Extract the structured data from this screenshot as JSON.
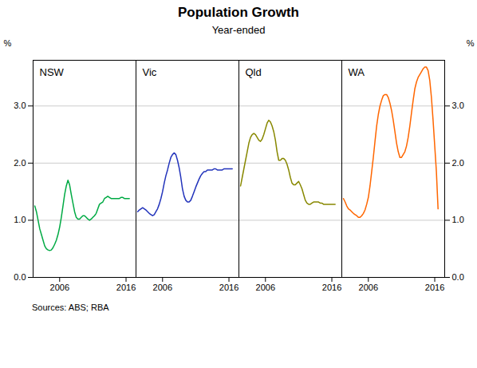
{
  "chart_data": {
    "type": "line",
    "title": "Population Growth",
    "subtitle": "Year-ended",
    "source": "Sources:   ABS; RBA",
    "ylabel": "%",
    "y2label": "%",
    "xlim": [
      2002.0,
      2017.5
    ],
    "xticks": [
      2006,
      2016
    ],
    "ylim": [
      0,
      3.8
    ],
    "yticks": [
      0,
      1,
      2,
      3
    ],
    "y2lim": [
      0,
      3.8
    ],
    "y2ticks": [
      0,
      1,
      2,
      3
    ],
    "grid": true,
    "x": [
      2002.25,
      2002.5,
      2002.75,
      2003.0,
      2003.25,
      2003.5,
      2003.75,
      2004.0,
      2004.25,
      2004.5,
      2004.75,
      2005.0,
      2005.25,
      2005.5,
      2005.75,
      2006.0,
      2006.25,
      2006.5,
      2006.75,
      2007.0,
      2007.25,
      2007.5,
      2007.75,
      2008.0,
      2008.25,
      2008.5,
      2008.75,
      2009.0,
      2009.25,
      2009.5,
      2009.75,
      2010.0,
      2010.25,
      2010.5,
      2010.75,
      2011.0,
      2011.25,
      2011.5,
      2011.75,
      2012.0,
      2012.25,
      2012.5,
      2012.75,
      2013.0,
      2013.25,
      2013.5,
      2013.75,
      2014.0,
      2014.25,
      2014.5,
      2014.75,
      2015.0,
      2015.25,
      2015.5,
      2015.75,
      2016.0,
      2016.25,
      2016.5
    ],
    "series": [
      {
        "name": "NSW",
        "color": "#00aa44",
        "values": [
          1.25,
          1.15,
          1.0,
          0.85,
          0.75,
          0.65,
          0.55,
          0.5,
          0.48,
          0.47,
          0.48,
          0.52,
          0.58,
          0.65,
          0.75,
          0.88,
          1.05,
          1.25,
          1.45,
          1.6,
          1.7,
          1.62,
          1.45,
          1.3,
          1.15,
          1.05,
          1.02,
          1.02,
          1.05,
          1.08,
          1.08,
          1.05,
          1.02,
          1.0,
          1.02,
          1.05,
          1.08,
          1.12,
          1.2,
          1.28,
          1.3,
          1.32,
          1.38,
          1.4,
          1.42,
          1.4,
          1.38,
          1.38,
          1.38,
          1.38,
          1.38,
          1.38,
          1.4,
          1.4,
          1.38,
          1.38,
          1.38,
          1.38
        ]
      },
      {
        "name": "Vic",
        "color": "#2233bb",
        "values": [
          1.15,
          1.18,
          1.2,
          1.22,
          1.2,
          1.18,
          1.15,
          1.12,
          1.1,
          1.08,
          1.1,
          1.15,
          1.2,
          1.28,
          1.38,
          1.5,
          1.65,
          1.78,
          1.88,
          2.0,
          2.1,
          2.15,
          2.18,
          2.15,
          2.05,
          1.92,
          1.75,
          1.55,
          1.42,
          1.35,
          1.32,
          1.32,
          1.35,
          1.42,
          1.5,
          1.58,
          1.65,
          1.72,
          1.78,
          1.82,
          1.85,
          1.85,
          1.88,
          1.88,
          1.88,
          1.88,
          1.9,
          1.9,
          1.88,
          1.88,
          1.88,
          1.88,
          1.9,
          1.9,
          1.9,
          1.9,
          1.9,
          1.9
        ]
      },
      {
        "name": "Qld",
        "color": "#888800",
        "values": [
          1.6,
          1.75,
          1.9,
          2.05,
          2.2,
          2.35,
          2.45,
          2.5,
          2.52,
          2.5,
          2.45,
          2.4,
          2.38,
          2.42,
          2.5,
          2.6,
          2.7,
          2.75,
          2.72,
          2.65,
          2.55,
          2.4,
          2.2,
          2.05,
          2.05,
          2.08,
          2.08,
          2.05,
          1.98,
          1.88,
          1.75,
          1.65,
          1.62,
          1.62,
          1.65,
          1.68,
          1.62,
          1.55,
          1.45,
          1.35,
          1.3,
          1.28,
          1.28,
          1.3,
          1.32,
          1.32,
          1.32,
          1.32,
          1.3,
          1.3,
          1.28,
          1.28,
          1.28,
          1.28,
          1.28,
          1.28,
          1.28,
          1.28
        ]
      },
      {
        "name": "WA",
        "color": "#ff6600",
        "values": [
          1.38,
          1.32,
          1.25,
          1.2,
          1.18,
          1.15,
          1.12,
          1.1,
          1.08,
          1.05,
          1.05,
          1.08,
          1.12,
          1.18,
          1.28,
          1.4,
          1.6,
          1.85,
          2.1,
          2.38,
          2.65,
          2.85,
          3.0,
          3.1,
          3.18,
          3.2,
          3.2,
          3.15,
          3.05,
          2.92,
          2.75,
          2.55,
          2.35,
          2.2,
          2.1,
          2.1,
          2.15,
          2.2,
          2.3,
          2.45,
          2.65,
          2.88,
          3.1,
          3.3,
          3.42,
          3.5,
          3.55,
          3.6,
          3.65,
          3.68,
          3.68,
          3.62,
          3.45,
          3.15,
          2.75,
          2.3,
          1.85,
          1.2
        ]
      }
    ]
  }
}
